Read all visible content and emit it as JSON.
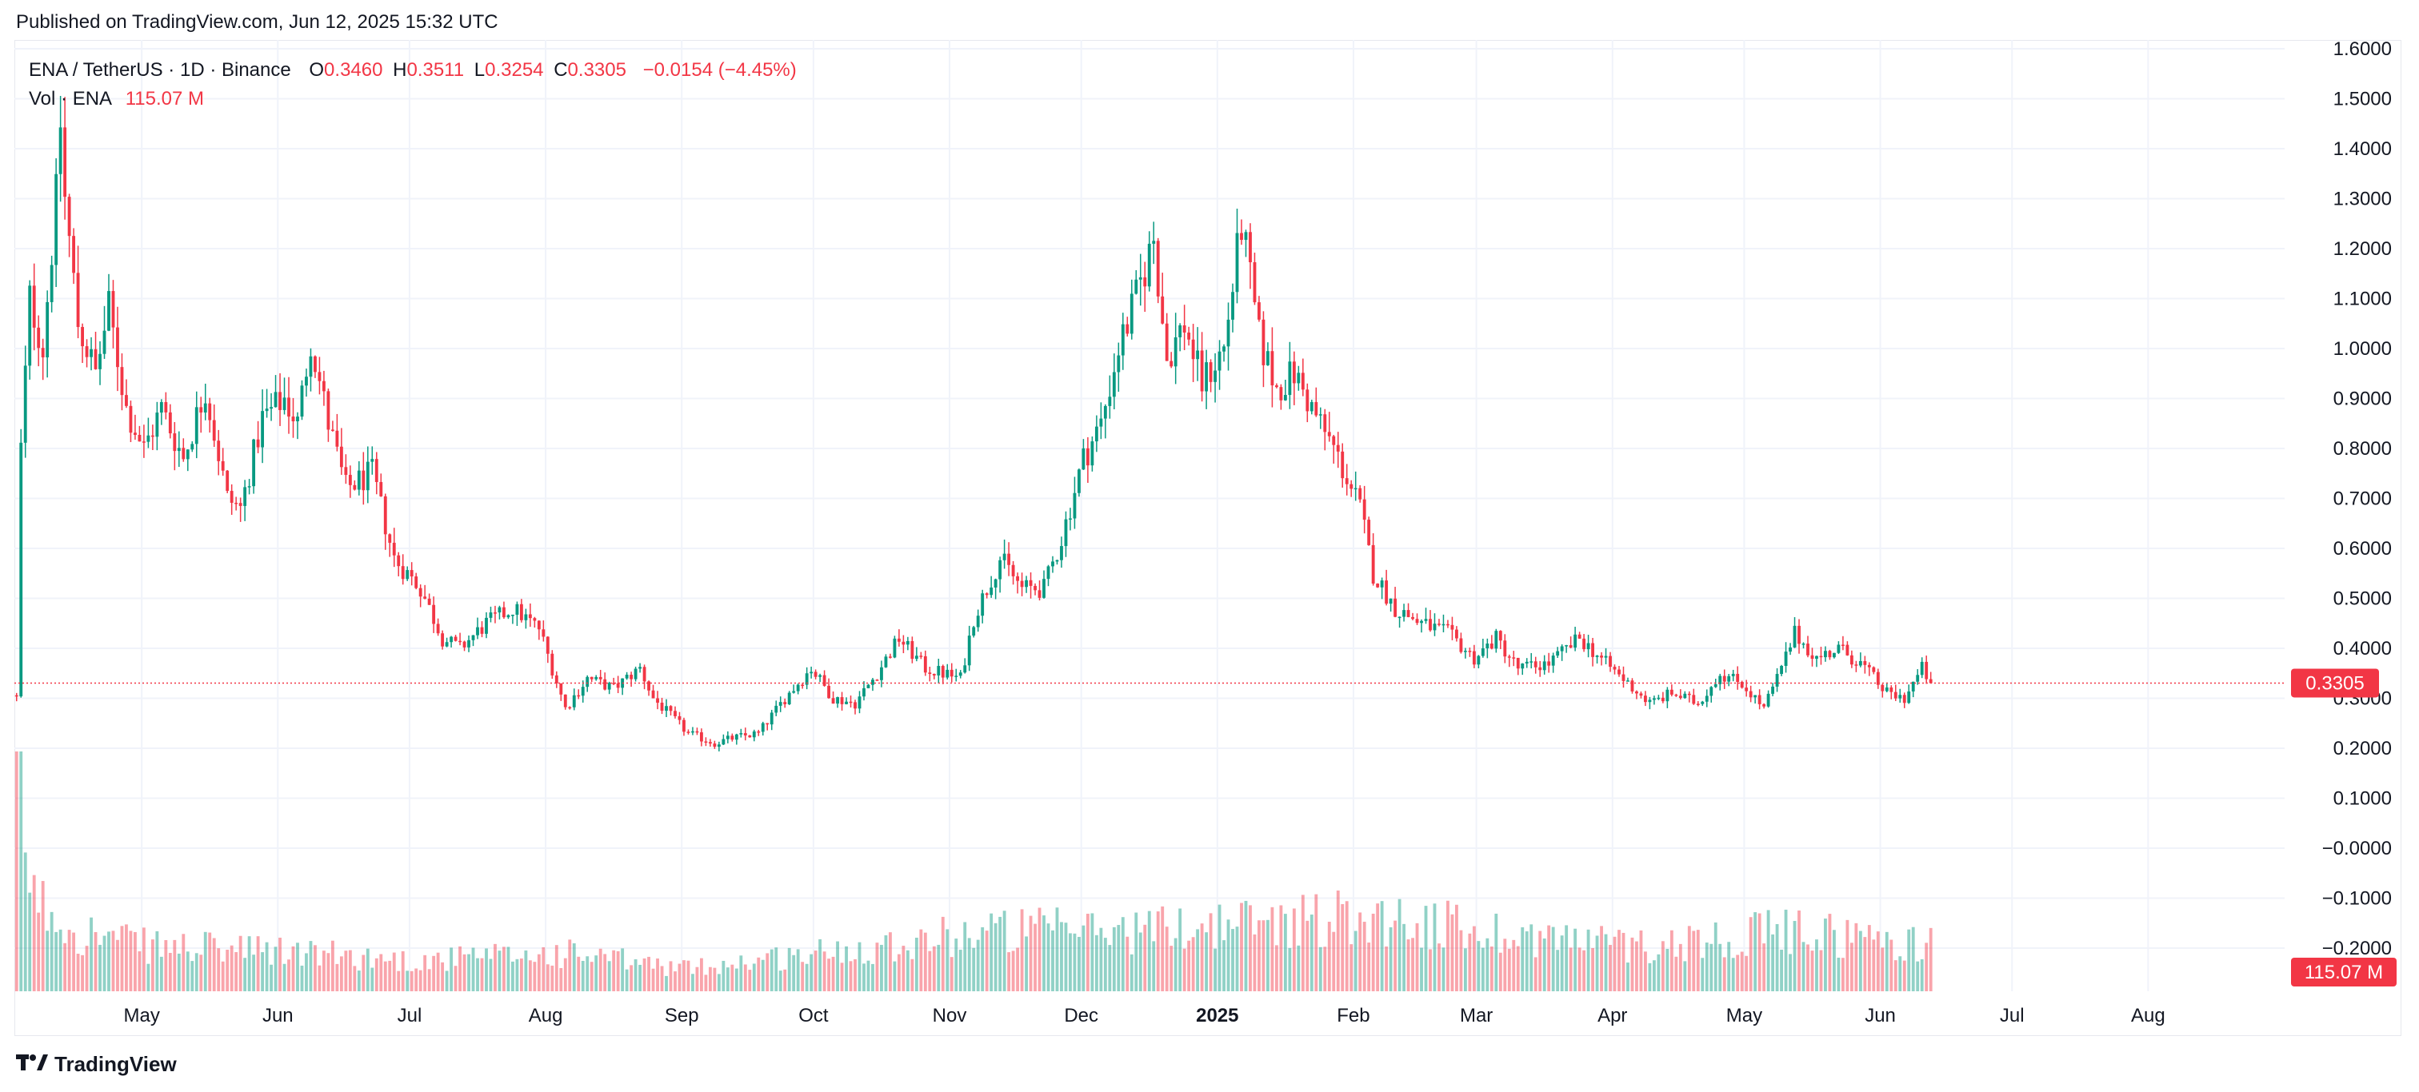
{
  "header": {
    "published": "Published on TradingView.com, Jun 12, 2025 15:32 UTC"
  },
  "legend": {
    "symbol": "ENA / TetherUS · 1D · Binance",
    "open_key": "O",
    "open": "0.3460",
    "high_key": "H",
    "high": "0.3511",
    "low_key": "L",
    "low": "0.3254",
    "close_key": "C",
    "close": "0.3305",
    "change": "−0.0154 (−4.45%)",
    "volume_label": "Vol · ENA",
    "volume": "115.07 M"
  },
  "colors": {
    "up": "#089981",
    "down": "#f23645",
    "grid": "#f0f3fa",
    "text": "#131722"
  },
  "footer": {
    "brand": "TradingView",
    "logo_icon": "tradingview-logo-icon"
  },
  "chart_data": {
    "type": "candlestick",
    "symbol": "ENA / TetherUS",
    "interval": "1D",
    "exchange": "Binance",
    "last_price": 0.3305,
    "last_price_label": "0.3305",
    "last_volume_label": "115.07 M",
    "y_ticks": [
      1.6,
      1.5,
      1.4,
      1.3,
      1.2,
      1.1,
      1.0,
      0.9,
      0.8,
      0.7,
      0.6,
      0.5,
      0.4,
      0.3,
      0.2,
      0.1,
      0.0,
      -0.1,
      -0.2
    ],
    "y_tick_labels": [
      "1.6000",
      "1.5000",
      "1.4000",
      "1.3000",
      "1.2000",
      "1.1000",
      "1.0000",
      "0.9000",
      "0.8000",
      "0.7000",
      "0.6000",
      "0.5000",
      "0.4000",
      "0.3000",
      "0.2000",
      "0.1000",
      "−0.0000",
      "−0.1000",
      "−0.2000"
    ],
    "ylim": [
      -0.2,
      1.6
    ],
    "x_range": [
      "2024-04-02",
      "2025-08-31"
    ],
    "x_ticks": [
      {
        "date": "2024-05-01",
        "label": "May"
      },
      {
        "date": "2024-06-01",
        "label": "Jun"
      },
      {
        "date": "2024-07-01",
        "label": "Jul"
      },
      {
        "date": "2024-08-01",
        "label": "Aug"
      },
      {
        "date": "2024-09-01",
        "label": "Sep"
      },
      {
        "date": "2024-10-01",
        "label": "Oct"
      },
      {
        "date": "2024-11-01",
        "label": "Nov"
      },
      {
        "date": "2024-12-01",
        "label": "Dec"
      },
      {
        "date": "2025-01-01",
        "label": "2025",
        "bold": true
      },
      {
        "date": "2025-02-01",
        "label": "Feb"
      },
      {
        "date": "2025-03-01",
        "label": "Mar"
      },
      {
        "date": "2025-04-01",
        "label": "Apr"
      },
      {
        "date": "2025-05-01",
        "label": "May"
      },
      {
        "date": "2025-06-01",
        "label": "Jun"
      },
      {
        "date": "2025-07-01",
        "label": "Jul"
      },
      {
        "date": "2025-08-01",
        "label": "Aug"
      }
    ],
    "close_path": [
      [
        "2024-04-02",
        0.3
      ],
      [
        "2024-04-03",
        0.8
      ],
      [
        "2024-04-05",
        1.1
      ],
      [
        "2024-04-08",
        1.0
      ],
      [
        "2024-04-11",
        1.3
      ],
      [
        "2024-04-12",
        1.45
      ],
      [
        "2024-04-13",
        1.3
      ],
      [
        "2024-04-16",
        1.05
      ],
      [
        "2024-04-20",
        0.95
      ],
      [
        "2024-04-23",
        1.08
      ],
      [
        "2024-04-27",
        0.88
      ],
      [
        "2024-05-01",
        0.8
      ],
      [
        "2024-05-05",
        0.88
      ],
      [
        "2024-05-10",
        0.78
      ],
      [
        "2024-05-15",
        0.92
      ],
      [
        "2024-05-20",
        0.7
      ],
      [
        "2024-05-23",
        0.68
      ],
      [
        "2024-05-28",
        0.86
      ],
      [
        "2024-06-02",
        0.9
      ],
      [
        "2024-06-05",
        0.85
      ],
      [
        "2024-06-08",
        1.02
      ],
      [
        "2024-06-12",
        0.85
      ],
      [
        "2024-06-16",
        0.72
      ],
      [
        "2024-06-22",
        0.75
      ],
      [
        "2024-06-27",
        0.58
      ],
      [
        "2024-07-03",
        0.52
      ],
      [
        "2024-07-08",
        0.42
      ],
      [
        "2024-07-12",
        0.4
      ],
      [
        "2024-07-18",
        0.45
      ],
      [
        "2024-07-24",
        0.48
      ],
      [
        "2024-07-30",
        0.44
      ],
      [
        "2024-08-05",
        0.28
      ],
      [
        "2024-08-10",
        0.34
      ],
      [
        "2024-08-16",
        0.32
      ],
      [
        "2024-08-22",
        0.36
      ],
      [
        "2024-08-25",
        0.3
      ],
      [
        "2024-09-02",
        0.23
      ],
      [
        "2024-09-08",
        0.21
      ],
      [
        "2024-09-12",
        0.22
      ],
      [
        "2024-09-18",
        0.23
      ],
      [
        "2024-09-24",
        0.3
      ],
      [
        "2024-09-30",
        0.36
      ],
      [
        "2024-10-05",
        0.3
      ],
      [
        "2024-10-10",
        0.29
      ],
      [
        "2024-10-15",
        0.35
      ],
      [
        "2024-10-20",
        0.42
      ],
      [
        "2024-10-26",
        0.36
      ],
      [
        "2024-11-03",
        0.34
      ],
      [
        "2024-11-06",
        0.46
      ],
      [
        "2024-11-12",
        0.58
      ],
      [
        "2024-11-17",
        0.52
      ],
      [
        "2024-11-22",
        0.52
      ],
      [
        "2024-11-26",
        0.62
      ],
      [
        "2024-12-01",
        0.78
      ],
      [
        "2024-12-05",
        0.85
      ],
      [
        "2024-12-09",
        1.0
      ],
      [
        "2024-12-13",
        1.1
      ],
      [
        "2024-12-17",
        1.22
      ],
      [
        "2024-12-20",
        0.98
      ],
      [
        "2024-12-24",
        1.05
      ],
      [
        "2024-12-28",
        0.93
      ],
      [
        "2025-01-02",
        1.0
      ],
      [
        "2025-01-06",
        1.25
      ],
      [
        "2025-01-10",
        1.02
      ],
      [
        "2025-01-14",
        0.92
      ],
      [
        "2025-01-18",
        0.95
      ],
      [
        "2025-01-22",
        0.88
      ],
      [
        "2025-01-27",
        0.8
      ],
      [
        "2025-02-02",
        0.68
      ],
      [
        "2025-02-05",
        0.55
      ],
      [
        "2025-02-10",
        0.48
      ],
      [
        "2025-02-16",
        0.45
      ],
      [
        "2025-02-22",
        0.43
      ],
      [
        "2025-02-28",
        0.38
      ],
      [
        "2025-03-05",
        0.42
      ],
      [
        "2025-03-10",
        0.36
      ],
      [
        "2025-03-17",
        0.37
      ],
      [
        "2025-03-24",
        0.42
      ],
      [
        "2025-03-30",
        0.37
      ],
      [
        "2025-04-04",
        0.33
      ],
      [
        "2025-04-09",
        0.29
      ],
      [
        "2025-04-14",
        0.31
      ],
      [
        "2025-04-20",
        0.29
      ],
      [
        "2025-04-25",
        0.35
      ],
      [
        "2025-04-30",
        0.33
      ],
      [
        "2025-05-05",
        0.28
      ],
      [
        "2025-05-09",
        0.36
      ],
      [
        "2025-05-12",
        0.43
      ],
      [
        "2025-05-17",
        0.38
      ],
      [
        "2025-05-22",
        0.4
      ],
      [
        "2025-05-27",
        0.37
      ],
      [
        "2025-06-02",
        0.31
      ],
      [
        "2025-06-06",
        0.3
      ],
      [
        "2025-06-10",
        0.36
      ],
      [
        "2025-06-12",
        0.33
      ]
    ],
    "volume_path": [
      [
        "2024-04-02",
        0.15
      ],
      [
        "2024-04-06",
        0.06
      ],
      [
        "2024-04-16",
        0.04
      ],
      [
        "2024-05-01",
        0.03
      ],
      [
        "2024-06-08",
        0.025
      ],
      [
        "2024-07-01",
        0.02
      ],
      [
        "2024-08-05",
        0.025
      ],
      [
        "2024-09-01",
        0.015
      ],
      [
        "2024-10-01",
        0.025
      ],
      [
        "2024-11-10",
        0.04
      ],
      [
        "2024-12-10",
        0.04
      ],
      [
        "2025-01-06",
        0.045
      ],
      [
        "2025-02-03",
        0.05
      ],
      [
        "2025-03-01",
        0.04
      ],
      [
        "2025-04-07",
        0.03
      ],
      [
        "2025-05-12",
        0.04
      ],
      [
        "2025-06-12",
        0.03
      ]
    ],
    "volume_scale_note": "volume bars are drawn relative to the pane; values are relative heights"
  }
}
